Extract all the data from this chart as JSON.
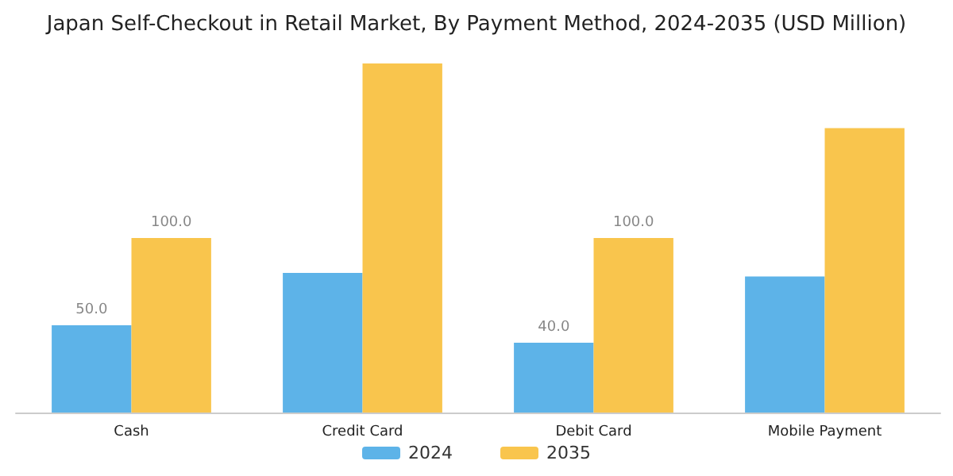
{
  "chart_data": {
    "type": "bar",
    "title": "Japan Self-Checkout in Retail Market, By Payment Method, 2024-2035 (USD Million)",
    "categories": [
      "Cash",
      "Credit Card",
      "Debit Card",
      "Mobile Payment"
    ],
    "series": [
      {
        "name": "2024",
        "color": "#5db3e8",
        "values": [
          50,
          80,
          40,
          78
        ],
        "value_labels": [
          "50.0",
          null,
          "40.0",
          null
        ]
      },
      {
        "name": "2035",
        "color": "#f9c54d",
        "values": [
          100,
          200,
          100,
          163
        ],
        "value_labels": [
          "100.0",
          null,
          "100.0",
          null
        ]
      }
    ],
    "legend": "bottom"
  }
}
